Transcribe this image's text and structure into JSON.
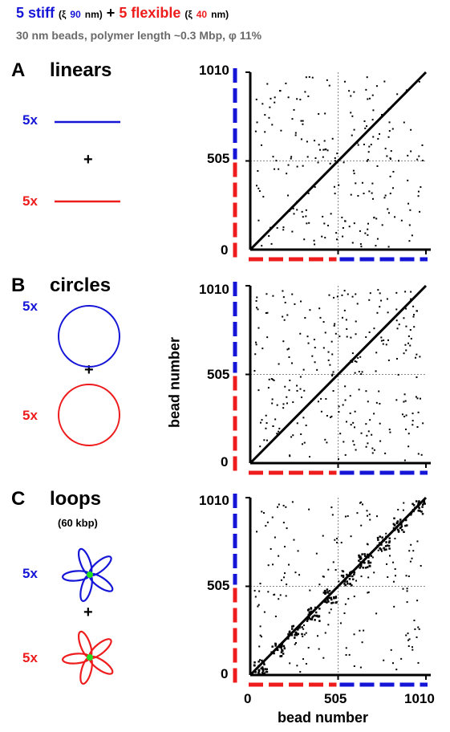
{
  "header": {
    "part1": "5 stiff",
    "xi_open_1": "(ξ",
    "xi_val_1": "90",
    "nm_close_1": "nm)",
    "plus": "+",
    "part2": "5 flexible",
    "xi_open_2": "(ξ",
    "xi_val_2": "40",
    "nm_close_2": "nm)",
    "subtitle": "30 nm beads, polymer length ~0.3 Mbp, φ 11%"
  },
  "panels": [
    {
      "letter": "A",
      "name": "linears",
      "sub": "",
      "top_mult": "5x",
      "plus": "+",
      "bottom_mult": "5x"
    },
    {
      "letter": "B",
      "name": "circles",
      "sub": "",
      "top_mult": "5x",
      "plus": "+",
      "bottom_mult": "5x"
    },
    {
      "letter": "C",
      "name": "loops",
      "sub": "(60 kbp)",
      "top_mult": "5x",
      "plus": "+",
      "bottom_mult": "5x"
    }
  ],
  "axes": {
    "y_ticks": [
      "1010",
      "505",
      "0"
    ],
    "x_ticks": [
      "0",
      "505",
      "1010"
    ],
    "y_title": "bead number",
    "x_title": "bead number"
  },
  "colors": {
    "stiff": "#1515d8",
    "flexible": "#ee1c1c",
    "loop_center": "#22dd22",
    "subtitle": "#6a6a6a"
  }
}
